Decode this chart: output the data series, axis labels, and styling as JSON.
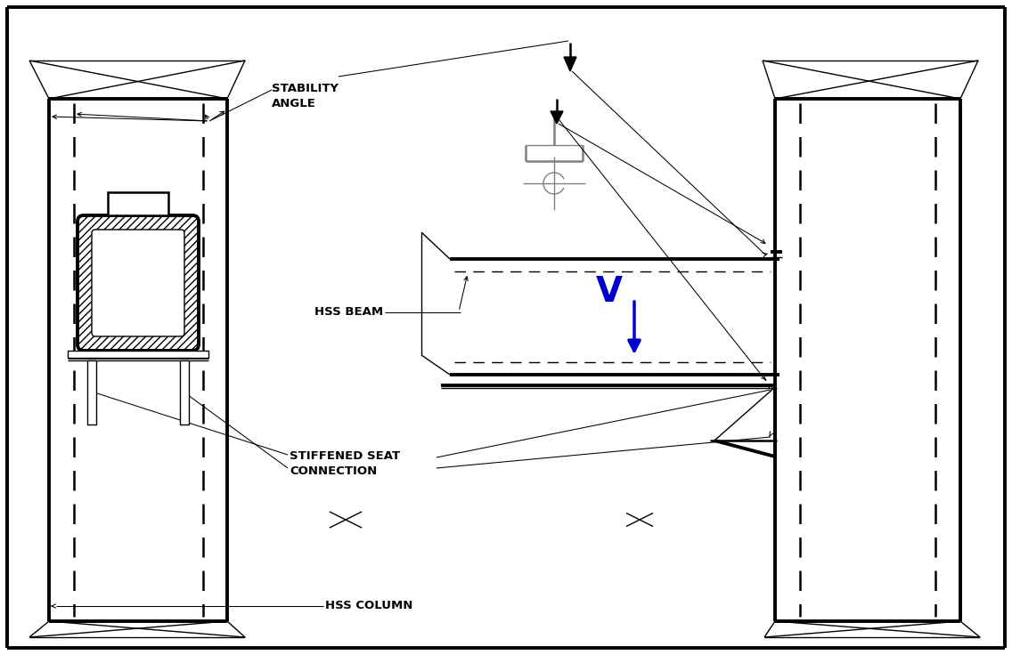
{
  "bg_color": "#ffffff",
  "line_color": "#000000",
  "blue_color": "#0000cc",
  "label_stability_angle": "STABILITY\nANGLE",
  "label_hss_beam": "HSS BEAM",
  "label_stiffened_seat": "STIFFENED SEAT\nCONNECTION",
  "label_hss_column": "HSS COLUMN",
  "lw_thick": 2.8,
  "lw_med": 1.8,
  "lw_thin": 1.0,
  "lw_ann": 0.75
}
